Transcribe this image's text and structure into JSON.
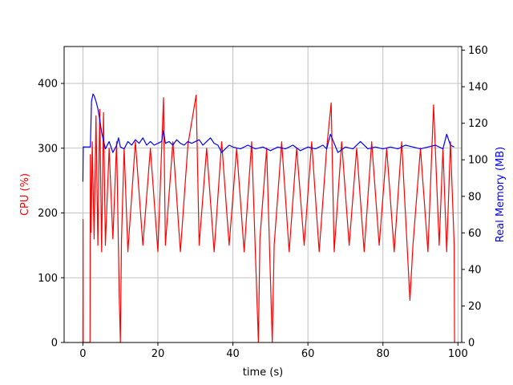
{
  "chart_data": {
    "type": "line",
    "title": "",
    "xlabel": "time (s)",
    "ylabel_left": "CPU (%)",
    "ylabel_right": "Real Memory (MB)",
    "xlim": [
      -5,
      101
    ],
    "ylim_left": [
      0,
      457
    ],
    "ylim_right": [
      0,
      162
    ],
    "x_ticks": [
      0,
      20,
      40,
      60,
      80,
      100
    ],
    "y_ticks_left": [
      0,
      100,
      200,
      300,
      400
    ],
    "y_ticks_right": [
      0,
      20,
      40,
      60,
      80,
      100,
      120,
      140,
      160
    ],
    "grid": true,
    "colors": {
      "cpu": "#ff0000",
      "memory": "#0000ff",
      "left_label": "#ff0000",
      "right_label": "#0000ff"
    },
    "series": [
      {
        "axis": "left",
        "x": [
          0,
          0.05,
          0.1,
          1.9,
          2.0,
          2.2,
          2.5,
          3.0,
          3.5,
          4.0,
          4.5,
          5,
          5.5,
          6,
          7,
          8,
          9,
          9.7,
          10.0,
          10.3,
          11,
          12,
          14,
          16,
          18,
          20,
          21.5,
          22,
          24,
          26,
          28,
          30.2,
          31,
          33,
          35,
          37,
          39,
          41,
          43,
          45,
          46.8,
          47.2,
          49,
          50.5,
          51,
          53,
          55,
          57,
          59,
          61,
          63,
          65,
          66.2,
          67,
          69,
          71,
          73,
          75,
          77,
          79,
          81,
          83,
          85,
          87.2,
          88,
          90,
          92,
          93.5,
          95,
          96,
          97,
          98,
          99,
          99.1
        ],
        "values": [
          0,
          190,
          0,
          0,
          290,
          170,
          310,
          160,
          350,
          150,
          360,
          140,
          355,
          150,
          300,
          160,
          310,
          70,
          0,
          160,
          300,
          140,
          310,
          150,
          300,
          140,
          378,
          150,
          310,
          140,
          305,
          382,
          150,
          300,
          140,
          310,
          150,
          300,
          140,
          310,
          0,
          160,
          300,
          0,
          150,
          310,
          140,
          300,
          150,
          310,
          140,
          300,
          370,
          140,
          310,
          150,
          300,
          140,
          310,
          150,
          300,
          140,
          310,
          65,
          150,
          300,
          140,
          367,
          150,
          300,
          140,
          310,
          150,
          0
        ]
      },
      {
        "axis": "right",
        "x": [
          0,
          0.1,
          1.5,
          2.0,
          2.3,
          2.7,
          3.0,
          3.5,
          4.0,
          4.5,
          5.0,
          6,
          7,
          8,
          9,
          9.5,
          10,
          11,
          12,
          13,
          14,
          15,
          16,
          17,
          18,
          19,
          20,
          21,
          21.5,
          22,
          23,
          24,
          25,
          26,
          27,
          28,
          29,
          30,
          31,
          32,
          33,
          34,
          35,
          36,
          37,
          38,
          39,
          40,
          42,
          44,
          46,
          48,
          50,
          52,
          54,
          56,
          58,
          60,
          62,
          64,
          65,
          66,
          68,
          70,
          72,
          74,
          76,
          78,
          80,
          82,
          84,
          86,
          88,
          90,
          92,
          94,
          96,
          97,
          98,
          99
        ],
        "values": [
          88,
          107,
          107,
          107,
          132,
          136,
          135,
          132,
          128,
          122,
          115,
          106,
          110,
          104,
          108,
          112,
          107,
          106,
          110,
          108,
          111,
          109,
          112,
          108,
          110,
          108,
          109,
          110,
          116,
          109,
          110,
          108,
          111,
          109,
          108,
          110,
          109,
          110,
          111,
          108,
          110,
          112,
          109,
          108,
          104,
          106,
          108,
          107,
          106,
          108,
          106,
          107,
          105,
          107,
          106,
          108,
          105,
          107,
          106,
          108,
          106,
          114,
          104,
          107,
          106,
          110,
          106,
          107,
          106,
          107,
          106,
          108,
          107,
          106,
          107,
          108,
          106,
          114,
          108,
          107
        ]
      }
    ]
  }
}
